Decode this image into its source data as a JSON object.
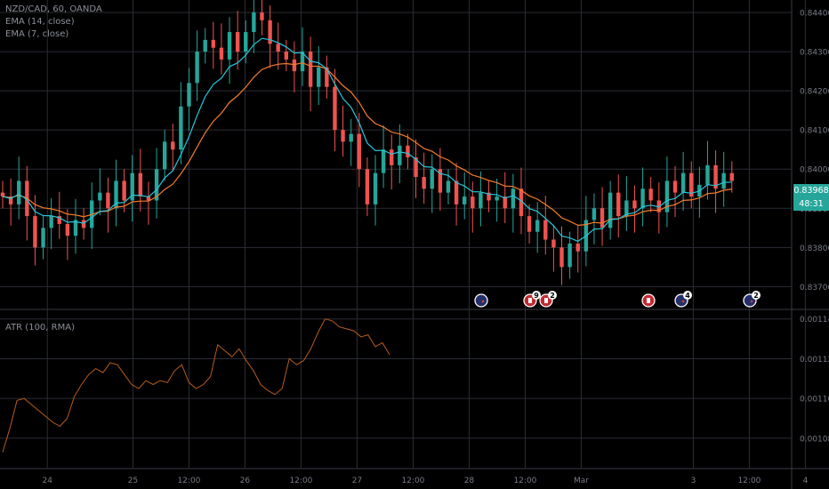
{
  "header": {
    "symbol_line": "NZD/CAD, 60, OANDA",
    "ema_long_label": "EMA (14, close)",
    "ema_short_label": "EMA (7, close)"
  },
  "price_badge": {
    "value": "0.83968",
    "timer": "48:31"
  },
  "atr": {
    "label": "ATR (100, RMA)"
  },
  "colors": {
    "up": "#26a69a",
    "down": "#ef5350",
    "ema_long": "#f57c2c",
    "ema_short": "#26c6da",
    "atr_line": "#b85c1e",
    "grid": "#2a2d35",
    "axis_text": "#787b86",
    "badge_bg": "#26a69a"
  },
  "chart_data": [
    {
      "type": "candlestick",
      "title": "NZD/CAD, 60, OANDA",
      "ylim": [
        0.8366,
        0.8445
      ],
      "y_ticks": [
        "0.84500",
        "0.84400",
        "0.84300",
        "0.84200",
        "0.84100",
        "0.84000",
        "0.83900",
        "0.83800",
        "0.83700"
      ],
      "x_ticks": [
        "24",
        "25",
        "12:00",
        "26",
        "12:00",
        "27",
        "12:00",
        "28",
        "12:00",
        "Mar",
        "3",
        "12:00",
        "4"
      ],
      "start_close": 0.8394,
      "closes": [
        0.8393,
        0.8391,
        0.8397,
        0.8388,
        0.838,
        0.8385,
        0.8388,
        0.8386,
        0.8383,
        0.8387,
        0.8385,
        0.8392,
        0.8394,
        0.839,
        0.8397,
        0.8392,
        0.8399,
        0.8393,
        0.8392,
        0.84,
        0.8407,
        0.8405,
        0.8416,
        0.8422,
        0.843,
        0.8433,
        0.8431,
        0.8428,
        0.8435,
        0.843,
        0.8435,
        0.844,
        0.8438,
        0.8432,
        0.843,
        0.8428,
        0.8425,
        0.843,
        0.8421,
        0.8426,
        0.8421,
        0.841,
        0.8407,
        0.8409,
        0.84,
        0.8391,
        0.8399,
        0.8405,
        0.8401,
        0.8406,
        0.8403,
        0.8398,
        0.8395,
        0.84,
        0.8394,
        0.8397,
        0.8391,
        0.8393,
        0.839,
        0.8394,
        0.8392,
        0.8393,
        0.839,
        0.8395,
        0.8388,
        0.8384,
        0.8387,
        0.8382,
        0.838,
        0.8375,
        0.8381,
        0.8379,
        0.8387,
        0.839,
        0.8385,
        0.8394,
        0.8388,
        0.8392,
        0.839,
        0.8395,
        0.8392,
        0.8389,
        0.8397,
        0.8394,
        0.8399,
        0.8393,
        0.8396,
        0.8401,
        0.8395,
        0.8399,
        0.8397
      ],
      "ema_long_value": 0.8394,
      "ema_short_value": 0.8395,
      "events": [
        {
          "flag": "nz",
          "count": ""
        },
        {
          "flag": "ca",
          "count": "9"
        },
        {
          "flag": "ca",
          "count": "2"
        },
        {
          "flag": "ca",
          "count": ""
        },
        {
          "flag": "nz",
          "count": "4"
        },
        {
          "flag": "nz",
          "count": "2"
        }
      ]
    },
    {
      "type": "line",
      "title": "ATR (100, RMA)",
      "ylim": [
        0.001067,
        0.001143
      ],
      "y_ticks": [
        "0.00114",
        "0.00112",
        "0.00110",
        "0.00108"
      ],
      "values": [
        0.001073,
        0.001085,
        0.001099,
        0.0011,
        0.001097,
        0.001094,
        0.001091,
        0.001088,
        0.001086,
        0.00109,
        0.001101,
        0.001107,
        0.001112,
        0.001115,
        0.001113,
        0.001118,
        0.001117,
        0.001112,
        0.001107,
        0.001105,
        0.001109,
        0.001107,
        0.001109,
        0.001108,
        0.001114,
        0.001117,
        0.001108,
        0.001105,
        0.001107,
        0.001111,
        0.001127,
        0.001124,
        0.001121,
        0.001125,
        0.001119,
        0.001114,
        0.001107,
        0.001104,
        0.001102,
        0.001105,
        0.00112,
        0.001117,
        0.001119,
        0.001125,
        0.001133,
        0.00114,
        0.001139,
        0.001136,
        0.001135,
        0.001134,
        0.001131,
        0.001132,
        0.001126,
        0.001128,
        0.001122
      ]
    }
  ]
}
